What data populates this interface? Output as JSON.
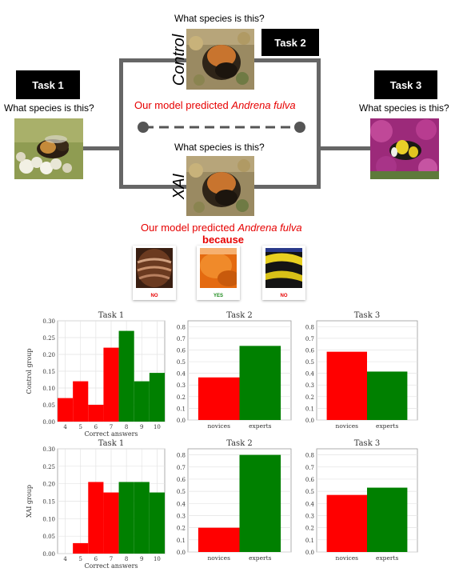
{
  "diagram": {
    "task1": {
      "label": "Task 1",
      "question": "What species is this?"
    },
    "task2": {
      "label": "Task 2"
    },
    "task3": {
      "label": "Task 3",
      "question": "What species is this?"
    },
    "control": {
      "label": "Control",
      "question": "What species is this?",
      "prediction_prefix": "Our model predicted ",
      "prediction_species": "Andrena fulva"
    },
    "xai": {
      "label": "XAI",
      "question": "What species is this?",
      "prediction_prefix": "Our model predicted ",
      "prediction_species": "Andrena fulva",
      "because": "because"
    },
    "patches": [
      {
        "verdict": "NO",
        "color": "#e60000",
        "icon": "abdomen-patch"
      },
      {
        "verdict": "YES",
        "color": "#1a8a1a",
        "icon": "orange-fur-patch"
      },
      {
        "verdict": "NO",
        "color": "#e60000",
        "icon": "yellow-black-stripes-patch"
      }
    ]
  },
  "chart_data": [
    {
      "type": "bar",
      "title": "Task 1",
      "ylabel": "Control group",
      "xlabel": "Correct answers",
      "x": [
        4,
        5,
        6,
        7,
        8,
        9,
        10
      ],
      "values": [
        0.07,
        0.12,
        0.05,
        0.22,
        0.27,
        0.12,
        0.145
      ],
      "colors": [
        "#ff0000",
        "#ff0000",
        "#ff0000",
        "#ff0000",
        "#008000",
        "#008000",
        "#008000"
      ],
      "ylim": [
        0,
        0.3
      ],
      "yticks": [
        "0.00",
        "0.05",
        "0.10",
        "0.15",
        "0.20",
        "0.25",
        "0.30"
      ],
      "xticks": [
        "4",
        "5",
        "6",
        "7",
        "8",
        "9",
        "10"
      ]
    },
    {
      "type": "bar",
      "title": "Task 2",
      "categories": [
        "novices",
        "experts"
      ],
      "values": [
        0.365,
        0.635
      ],
      "colors": [
        "#ff0000",
        "#008000"
      ],
      "ylim": [
        0,
        0.85
      ],
      "yticks": [
        "0.0",
        "0.1",
        "0.2",
        "0.3",
        "0.4",
        "0.5",
        "0.6",
        "0.7",
        "0.8"
      ]
    },
    {
      "type": "bar",
      "title": "Task 3",
      "categories": [
        "novices",
        "experts"
      ],
      "values": [
        0.585,
        0.415
      ],
      "colors": [
        "#ff0000",
        "#008000"
      ],
      "ylim": [
        0,
        0.85
      ],
      "yticks": [
        "0.0",
        "0.1",
        "0.2",
        "0.3",
        "0.4",
        "0.5",
        "0.6",
        "0.7",
        "0.8"
      ]
    },
    {
      "type": "bar",
      "title": "Task 1",
      "ylabel": "XAI group",
      "xlabel": "Correct answers",
      "x": [
        4,
        5,
        6,
        7,
        8,
        9,
        10
      ],
      "values": [
        0.0,
        0.03,
        0.205,
        0.175,
        0.205,
        0.205,
        0.175
      ],
      "colors": [
        "#ff0000",
        "#ff0000",
        "#ff0000",
        "#ff0000",
        "#008000",
        "#008000",
        "#008000"
      ],
      "ylim": [
        0,
        0.3
      ],
      "yticks": [
        "0.00",
        "0.05",
        "0.10",
        "0.15",
        "0.20",
        "0.25",
        "0.30"
      ],
      "xticks": [
        "4",
        "5",
        "6",
        "7",
        "8",
        "9",
        "10"
      ]
    },
    {
      "type": "bar",
      "title": "Task 2",
      "categories": [
        "novices",
        "experts"
      ],
      "values": [
        0.2,
        0.8
      ],
      "colors": [
        "#ff0000",
        "#008000"
      ],
      "ylim": [
        0,
        0.85
      ],
      "yticks": [
        "0.0",
        "0.1",
        "0.2",
        "0.3",
        "0.4",
        "0.5",
        "0.6",
        "0.7",
        "0.8"
      ]
    },
    {
      "type": "bar",
      "title": "Task 3",
      "categories": [
        "novices",
        "experts"
      ],
      "values": [
        0.47,
        0.53
      ],
      "colors": [
        "#ff0000",
        "#008000"
      ],
      "ylim": [
        0,
        0.85
      ],
      "yticks": [
        "0.0",
        "0.1",
        "0.2",
        "0.3",
        "0.4",
        "0.5",
        "0.6",
        "0.7",
        "0.8"
      ]
    }
  ]
}
